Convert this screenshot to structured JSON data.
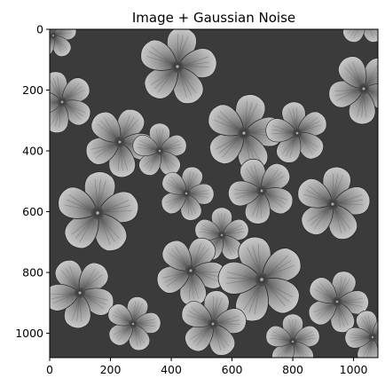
{
  "title": "Image + Gaussian Noise",
  "axes": {
    "x_ticks": [
      "0",
      "200",
      "400",
      "600",
      "800",
      "1000"
    ],
    "y_ticks": [
      "0",
      "200",
      "400",
      "600",
      "800",
      "1000"
    ],
    "x_range": [
      0,
      1080
    ],
    "y_range": [
      0,
      1080
    ],
    "y_inverted": true
  },
  "image": {
    "subject": "grayscale photo of clustered five-petal flowers with Gaussian noise",
    "colormap": "gray"
  }
}
